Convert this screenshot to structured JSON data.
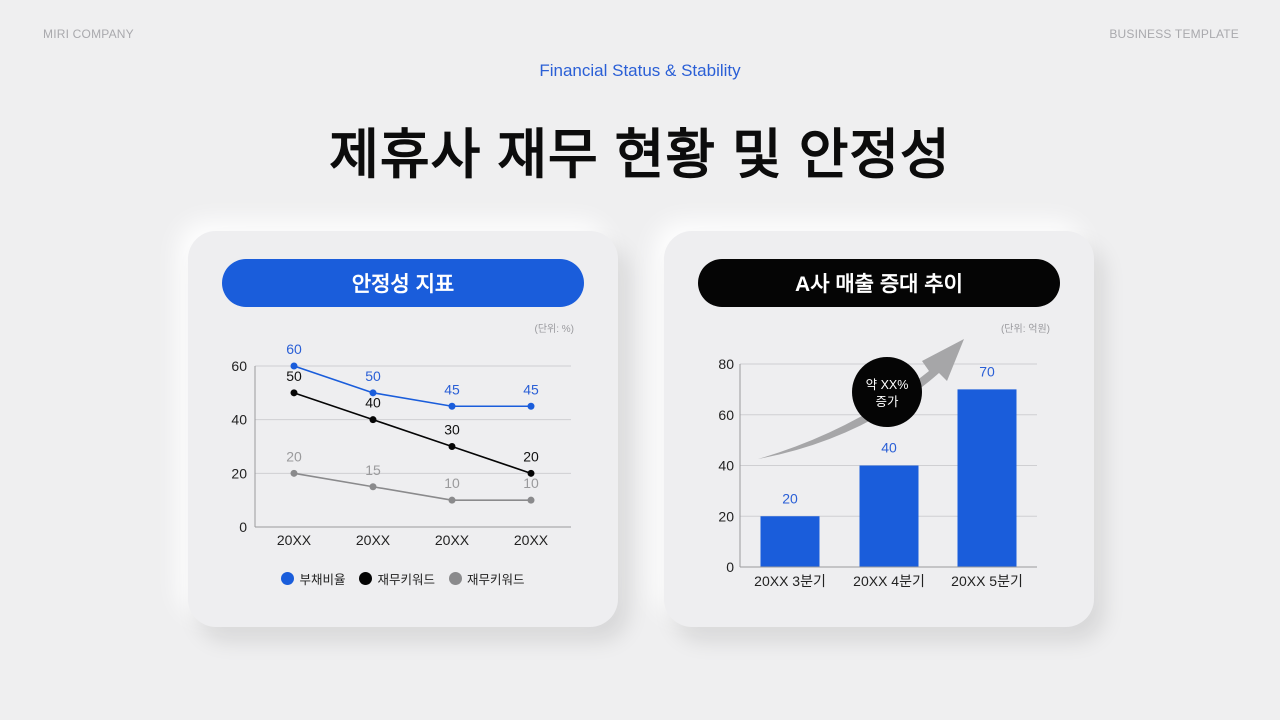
{
  "header": {
    "company": "MIRI COMPANY",
    "template": "BUSINESS TEMPLATE",
    "subtitle": "Financial Status & Stability",
    "title": "제휴사 재무 현황 및 안정성"
  },
  "colors": {
    "blue": "#1a5ddb",
    "black": "#050505",
    "gray": "#8a8a8c",
    "arrow": "#a6a6a8"
  },
  "left_card": {
    "pill_label": "안정성 지표",
    "unit": "(단위: %)",
    "legend": [
      "부채비율",
      "재무키워드",
      "재무키워드"
    ]
  },
  "right_card": {
    "pill_label": "A사 매출 증대 추이",
    "unit": "(단위: 억원)",
    "badge_line1": "약 XX%",
    "badge_line2": "증가"
  },
  "chart_data": [
    {
      "type": "line",
      "title": "안정성 지표",
      "unit": "(단위: %)",
      "categories": [
        "20XX",
        "20XX",
        "20XX",
        "20XX"
      ],
      "series": [
        {
          "name": "부채비율",
          "color": "#1a5ddb",
          "values": [
            60,
            50,
            45,
            45
          ]
        },
        {
          "name": "재무키워드",
          "color": "#050505",
          "values": [
            50,
            40,
            30,
            20
          ]
        },
        {
          "name": "재무키워드",
          "color": "#8a8a8c",
          "values": [
            20,
            15,
            10,
            10
          ]
        }
      ],
      "yticks": [
        0,
        20,
        40,
        60
      ],
      "ylim": [
        0,
        60
      ],
      "grid": true,
      "data_labels": true,
      "legend_position": "bottom"
    },
    {
      "type": "bar",
      "title": "A사 매출 증대 추이",
      "unit": "(단위: 억원)",
      "categories": [
        "20XX 3분기",
        "20XX 4분기",
        "20XX 5분기"
      ],
      "values": [
        20,
        40,
        70
      ],
      "color": "#1a5ddb",
      "yticks": [
        0,
        20,
        40,
        60,
        80
      ],
      "ylim": [
        0,
        80
      ],
      "grid": true,
      "data_labels": true,
      "annotation": "약 XX% 증가"
    }
  ]
}
